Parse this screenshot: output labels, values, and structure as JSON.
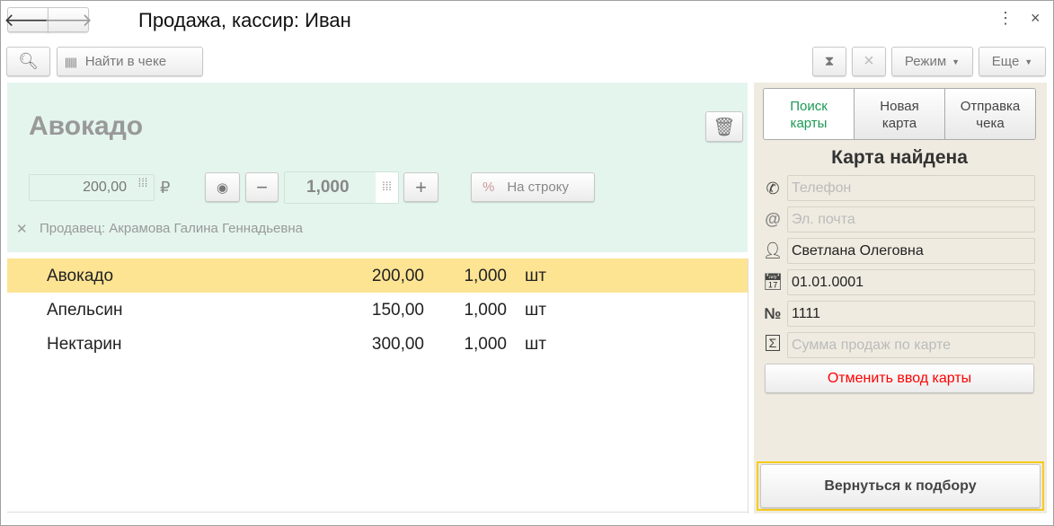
{
  "title": "Продажа, кассир: Иван",
  "toolbar": {
    "find_label": "Найти в чеке",
    "mode_label": "Режим",
    "more_label": "Еще"
  },
  "item": {
    "name": "Авокадо",
    "price": "200,00",
    "currency": "₽",
    "quantity": "1,000",
    "discount_label": "На строку",
    "seller": "Продавец: Акрамова Галина Геннадьевна"
  },
  "lines": [
    {
      "name": "Авокадо",
      "price": "200,00",
      "qty": "1,000",
      "unit": "шт",
      "selected": true
    },
    {
      "name": "Апельсин",
      "price": "150,00",
      "qty": "1,000",
      "unit": "шт",
      "selected": false
    },
    {
      "name": "Нектарин",
      "price": "300,00",
      "qty": "1,000",
      "unit": "шт",
      "selected": false
    }
  ],
  "card": {
    "tabs": [
      {
        "label": "Поиск\nкарты",
        "active": true
      },
      {
        "label": "Новая\nкарта"
      },
      {
        "label": "Отправка\nчека"
      }
    ],
    "status": "Карта найдена",
    "phone_placeholder": "Телефон",
    "email_placeholder": "Эл. почта",
    "name": "Светлана Олеговна",
    "date": "01.01.0001",
    "number": "1111",
    "sum_placeholder": "Сумма продаж по карте",
    "cancel_label": "Отменить ввод карты"
  },
  "return_label": "Вернуться к подбору",
  "colors": {
    "item_panel": "#e4f5ee",
    "selected_row": "#fde493",
    "side_panel": "#efebe0",
    "active_tab": "#1a9a55",
    "cancel": "#ff0000"
  }
}
